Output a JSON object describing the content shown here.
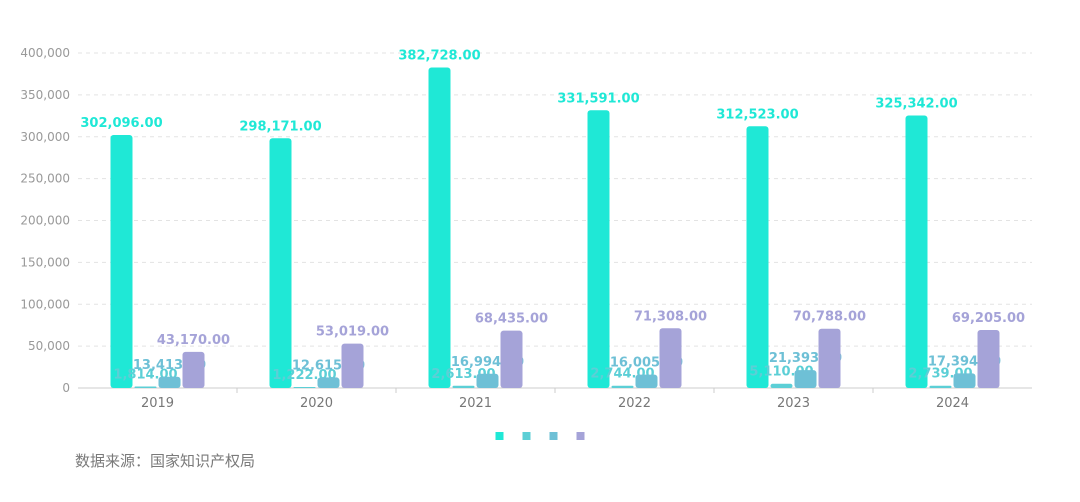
{
  "chart_data": {
    "type": "bar",
    "categories": [
      "2019",
      "2020",
      "2021",
      "2022",
      "2023",
      "2024"
    ],
    "series": [
      {
        "color": "#1fe8d6",
        "values": [
          302096,
          298171,
          382728,
          331591,
          312523,
          325342
        ],
        "labels": [
          "302,096.00",
          "298,171.00",
          "382,728.00",
          "331,591.00",
          "312,523.00",
          "325,342.00"
        ]
      },
      {
        "color": "#5ccfd6",
        "values": [
          1814,
          1222,
          2613,
          2744,
          5110,
          2739
        ],
        "labels": [
          "1,814.00",
          "1,222.00",
          "2,613.00",
          "2,744.00",
          "5,110.00",
          "2,739.00"
        ]
      },
      {
        "color": "#6ec0d6",
        "values": [
          13413,
          12615,
          16994,
          16005,
          21393,
          17394
        ],
        "labels": [
          "13,413.00",
          "12,615.00",
          "16,994.00",
          "16,005.00",
          "21,393.00",
          "17,394.00"
        ]
      },
      {
        "color": "#a5a3d8",
        "values": [
          43170,
          53019,
          68435,
          71308,
          70788,
          69205
        ],
        "labels": [
          "43,170.00",
          "53,019.00",
          "68,435.00",
          "71,308.00",
          "70,788.00",
          "69,205.00"
        ]
      }
    ],
    "ylim": [
      0,
      400000
    ],
    "yticks": [
      "0",
      "50,000",
      "100,000",
      "150,000",
      "200,000",
      "250,000",
      "300,000",
      "350,000",
      "400,000"
    ],
    "grid": true,
    "legend_position": "bottom-center"
  },
  "source_text": "数据来源：国家知识产权局"
}
